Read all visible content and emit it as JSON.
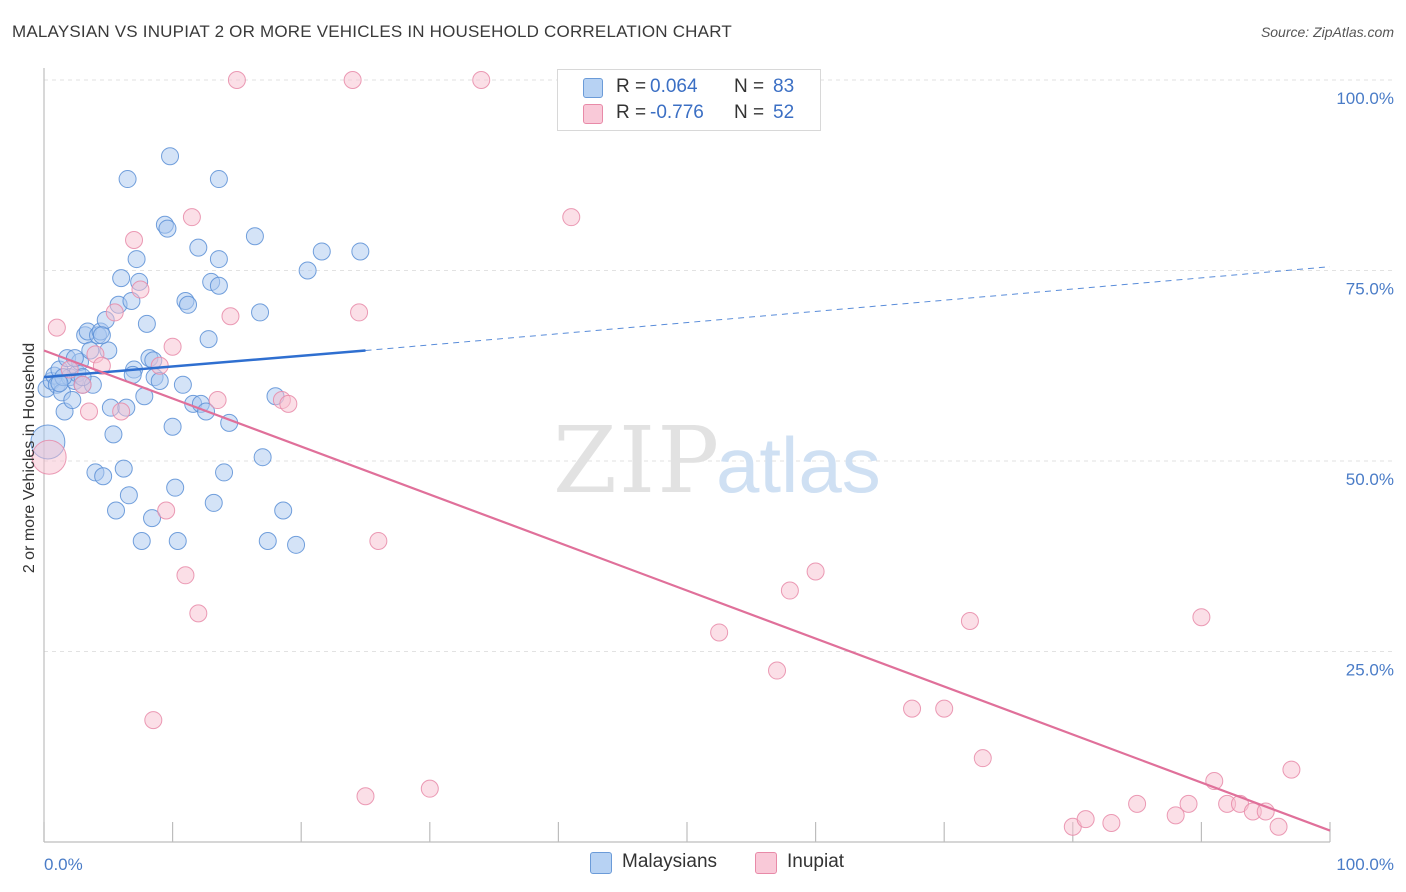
{
  "title": "MALAYSIAN VS INUPIAT 2 OR MORE VEHICLES IN HOUSEHOLD CORRELATION CHART",
  "source": "Source: ZipAtlas.com",
  "watermark": {
    "zip": "ZIP",
    "atlas": "atlas"
  },
  "legend": {
    "r_label": "R =",
    "n_label": "N =",
    "rows": [
      {
        "name": "Malaysians",
        "r": "0.064",
        "n": "83",
        "color": "#a9c8f0",
        "stroke": "#6b9bd8"
      },
      {
        "name": "Inupiat",
        "r": "-0.776",
        "n": "52",
        "color": "#f7bfd0",
        "stroke": "#e88aa8"
      }
    ]
  },
  "chart_data": {
    "type": "scatter",
    "ylabel": "2 or more Vehicles in Household",
    "xlabel": "",
    "xlim": [
      0,
      100
    ],
    "ylim": [
      0,
      100
    ],
    "x_tick_labels": [
      "0.0%",
      "100.0%"
    ],
    "y_tick_labels": [
      "100.0%",
      "75.0%",
      "50.0%",
      "25.0%"
    ],
    "y_tick_values": [
      100,
      75,
      50,
      25
    ],
    "grid": true,
    "series": [
      {
        "name": "Malaysians",
        "color": "#a9c8f0",
        "stroke": "#5b8fd6",
        "trend": {
          "x0": 0,
          "y0": 61.0,
          "x1": 25,
          "y1": 64.5,
          "dash_to": 100,
          "dash_y": 75.5,
          "color": "#2f6fd0"
        },
        "points": [
          [
            0.2,
            59.5
          ],
          [
            0.6,
            60.5
          ],
          [
            0.8,
            61.2
          ],
          [
            1.0,
            60.0
          ],
          [
            1.2,
            62.0
          ],
          [
            1.4,
            59.0
          ],
          [
            1.6,
            56.5
          ],
          [
            1.8,
            63.5
          ],
          [
            2.0,
            61.0
          ],
          [
            2.2,
            58.0
          ],
          [
            2.4,
            60.5
          ],
          [
            2.6,
            61.5
          ],
          [
            2.8,
            63.0
          ],
          [
            3.0,
            60.0
          ],
          [
            3.2,
            66.5
          ],
          [
            3.4,
            67.0
          ],
          [
            3.6,
            64.5
          ],
          [
            3.8,
            60.0
          ],
          [
            4.0,
            48.5
          ],
          [
            4.2,
            66.5
          ],
          [
            4.4,
            67.0
          ],
          [
            4.6,
            48.0
          ],
          [
            4.8,
            68.5
          ],
          [
            5.0,
            64.5
          ],
          [
            5.2,
            57.0
          ],
          [
            5.4,
            53.5
          ],
          [
            5.6,
            43.5
          ],
          [
            5.8,
            70.5
          ],
          [
            6.0,
            74.0
          ],
          [
            6.2,
            49.0
          ],
          [
            6.4,
            57.0
          ],
          [
            6.6,
            45.5
          ],
          [
            6.8,
            71.0
          ],
          [
            7.0,
            62.0
          ],
          [
            7.2,
            76.5
          ],
          [
            7.4,
            73.5
          ],
          [
            7.6,
            39.5
          ],
          [
            7.8,
            58.5
          ],
          [
            8.0,
            68.0
          ],
          [
            8.2,
            63.5
          ],
          [
            8.4,
            42.5
          ],
          [
            8.6,
            61.0
          ],
          [
            9.0,
            60.5
          ],
          [
            9.4,
            81.0
          ],
          [
            9.6,
            80.5
          ],
          [
            9.8,
            90.0
          ],
          [
            10.0,
            54.5
          ],
          [
            10.2,
            46.5
          ],
          [
            10.4,
            39.5
          ],
          [
            10.8,
            60.0
          ],
          [
            11.0,
            71.0
          ],
          [
            11.2,
            70.5
          ],
          [
            11.6,
            57.5
          ],
          [
            12.0,
            78.0
          ],
          [
            12.2,
            57.5
          ],
          [
            12.6,
            56.5
          ],
          [
            12.8,
            66.0
          ],
          [
            13.0,
            73.5
          ],
          [
            13.2,
            44.5
          ],
          [
            13.6,
            73.0
          ],
          [
            13.6,
            76.5
          ],
          [
            14.0,
            48.5
          ],
          [
            14.4,
            55.0
          ],
          [
            13.6,
            87.0
          ],
          [
            6.5,
            87.0
          ],
          [
            16.4,
            79.5
          ],
          [
            16.8,
            69.5
          ],
          [
            17.0,
            50.5
          ],
          [
            17.4,
            39.5
          ],
          [
            18.0,
            58.5
          ],
          [
            18.6,
            43.5
          ],
          [
            19.6,
            39.0
          ],
          [
            21.6,
            77.5
          ],
          [
            24.6,
            77.5
          ],
          [
            20.5,
            75.0
          ],
          [
            4.5,
            66.5
          ],
          [
            2.4,
            63.5
          ],
          [
            1.5,
            61.0
          ],
          [
            0.3,
            52.5
          ],
          [
            3.0,
            61.0
          ],
          [
            1.2,
            60.2
          ],
          [
            6.9,
            61.3
          ],
          [
            8.5,
            63.2
          ]
        ]
      },
      {
        "name": "Inupiat",
        "color": "#f7bfd0",
        "stroke": "#e88aa8",
        "trend": {
          "x0": 0,
          "y0": 64.5,
          "x1": 100,
          "y1": 1.5,
          "color": "#e0709a"
        },
        "points": [
          [
            0.4,
            50.5
          ],
          [
            1.0,
            67.5
          ],
          [
            2.0,
            62.0
          ],
          [
            3.0,
            60.0
          ],
          [
            3.5,
            56.5
          ],
          [
            4.0,
            64.0
          ],
          [
            4.5,
            62.5
          ],
          [
            5.5,
            69.5
          ],
          [
            6.0,
            56.5
          ],
          [
            7.0,
            79.0
          ],
          [
            7.5,
            72.5
          ],
          [
            8.5,
            16.0
          ],
          [
            9.0,
            62.5
          ],
          [
            9.5,
            43.5
          ],
          [
            10.0,
            65.0
          ],
          [
            11.0,
            35.0
          ],
          [
            11.5,
            82.0
          ],
          [
            12.0,
            30.0
          ],
          [
            13.5,
            58.0
          ],
          [
            14.5,
            69.0
          ],
          [
            15.0,
            100.0
          ],
          [
            18.5,
            58.0
          ],
          [
            19.0,
            57.5
          ],
          [
            24.0,
            100.0
          ],
          [
            24.5,
            69.5
          ],
          [
            25.0,
            6.0
          ],
          [
            26.0,
            39.5
          ],
          [
            30.0,
            7.0
          ],
          [
            34.0,
            100.0
          ],
          [
            41.0,
            82.0
          ],
          [
            52.5,
            27.5
          ],
          [
            57.0,
            22.5
          ],
          [
            58.0,
            33.0
          ],
          [
            60.0,
            35.5
          ],
          [
            67.5,
            17.5
          ],
          [
            70.0,
            17.5
          ],
          [
            72.0,
            29.0
          ],
          [
            73.0,
            11.0
          ],
          [
            80.0,
            2.0
          ],
          [
            81.0,
            3.0
          ],
          [
            83.0,
            2.5
          ],
          [
            85.0,
            5.0
          ],
          [
            88.0,
            3.5
          ],
          [
            89.0,
            5.0
          ],
          [
            90.0,
            29.5
          ],
          [
            91.0,
            8.0
          ],
          [
            92.0,
            5.0
          ],
          [
            93.0,
            5.0
          ],
          [
            94.0,
            4.0
          ],
          [
            95.0,
            4.0
          ],
          [
            96.0,
            2.0
          ],
          [
            97.0,
            9.5
          ]
        ]
      }
    ]
  }
}
